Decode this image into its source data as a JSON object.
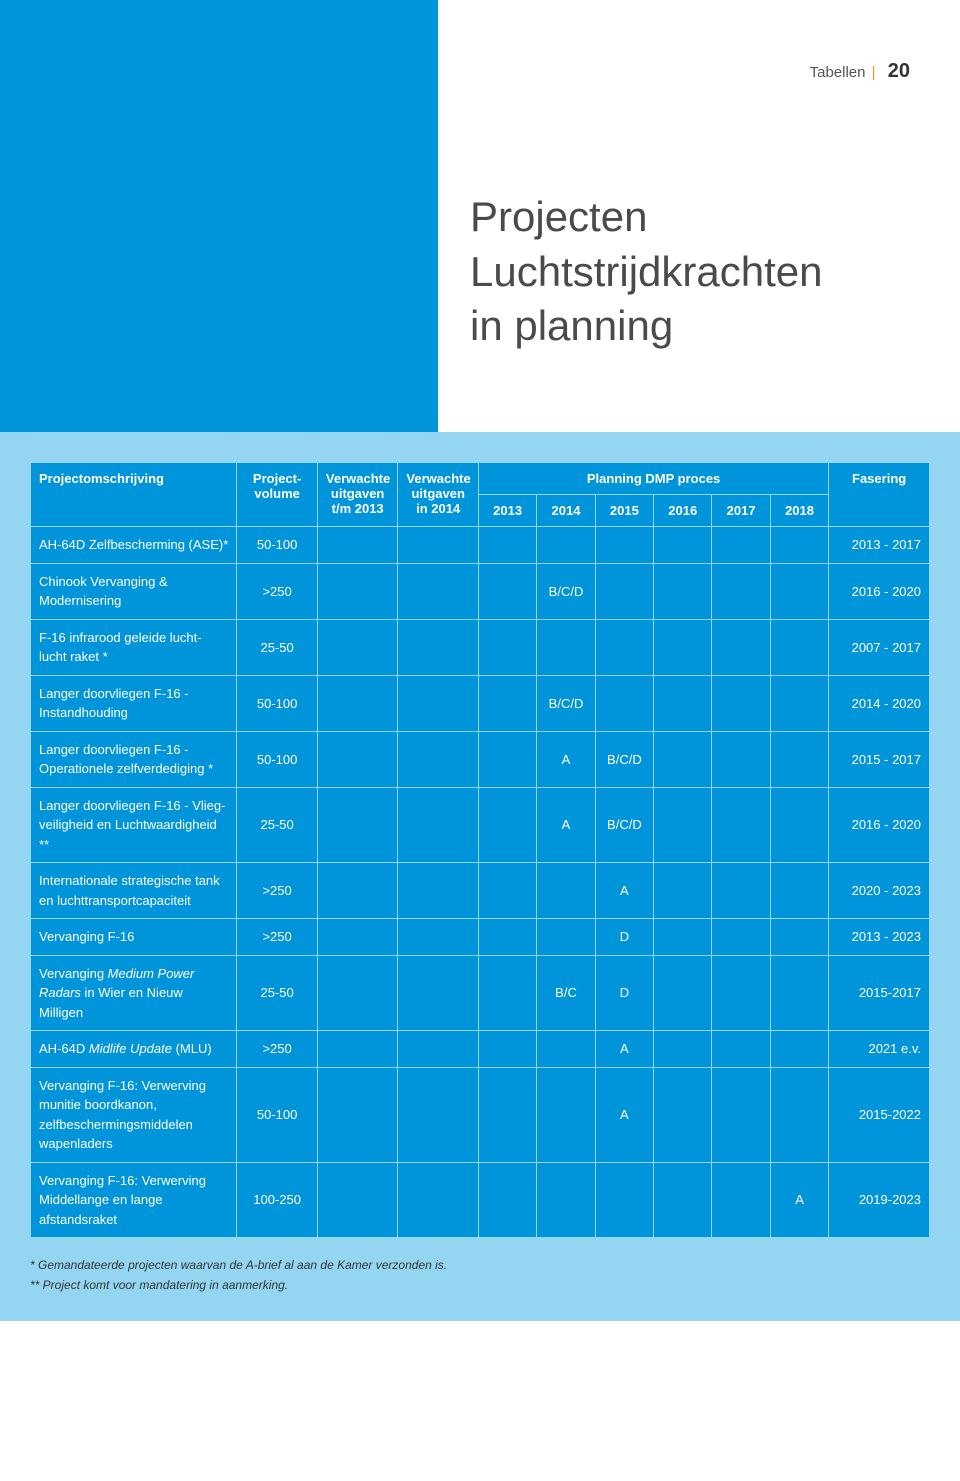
{
  "header": {
    "section_label": "Tabellen",
    "page_number": "20",
    "title_line1": "Projecten",
    "title_line2": "Luchtstrijdkrachten",
    "title_line3": "in planning"
  },
  "table": {
    "columns": {
      "desc": "Projectomschrijving",
      "volume_l1": "Project-",
      "volume_l2": "volume",
      "exp2013_l1": "Verwachte",
      "exp2013_l2": "uitgaven",
      "exp2013_l3": "t/m 2013",
      "exp2014_l1": "Verwachte",
      "exp2014_l2": "uitgaven",
      "exp2014_l3": "in 2014",
      "planning_group": "Planning DMP proces",
      "y2013": "2013",
      "y2014": "2014",
      "y2015": "2015",
      "y2016": "2016",
      "y2017": "2017",
      "y2018": "2018",
      "fasering": "Fasering"
    },
    "rows": [
      {
        "desc": "AH-64D Zelfbescherming (ASE)*",
        "vol": "50-100",
        "y2013": "",
        "y2014": "",
        "y2015": "",
        "y2016": "",
        "y2017": "",
        "y2018": "",
        "fase": "2013 - 2017"
      },
      {
        "desc": "Chinook Vervanging & Modernisering",
        "vol": ">250",
        "y2013": "",
        "y2014": "B/C/D",
        "y2015": "",
        "y2016": "",
        "y2017": "",
        "y2018": "",
        "fase": "2016 - 2020"
      },
      {
        "desc": "F-16 infrarood geleide lucht-lucht raket *",
        "vol": "25-50",
        "y2013": "",
        "y2014": "",
        "y2015": "",
        "y2016": "",
        "y2017": "",
        "y2018": "",
        "fase": "2007 - 2017"
      },
      {
        "desc": "Langer doorvliegen F-16 - Instandhouding",
        "vol": "50-100",
        "y2013": "",
        "y2014": "B/C/D",
        "y2015": "",
        "y2016": "",
        "y2017": "",
        "y2018": "",
        "fase": "2014 - 2020"
      },
      {
        "desc": "Langer doorvliegen F-16 - Operationele zelfverdediging *",
        "vol": "50-100",
        "y2013": "",
        "y2014": "A",
        "y2015": "B/C/D",
        "y2016": "",
        "y2017": "",
        "y2018": "",
        "fase": "2015 - 2017"
      },
      {
        "desc": "Langer doorvliegen F-16 - Vlieg-veiligheid en Luchtwaardigheid **",
        "vol": "25-50",
        "y2013": "",
        "y2014": "A",
        "y2015": "B/C/D",
        "y2016": "",
        "y2017": "",
        "y2018": "",
        "fase": "2016 - 2020"
      },
      {
        "desc": "Internationale strategische tank en luchttransportcapaciteit",
        "vol": ">250",
        "y2013": "",
        "y2014": "",
        "y2015": "A",
        "y2016": "",
        "y2017": "",
        "y2018": "",
        "fase": "2020 - 2023"
      },
      {
        "desc": "Vervanging F-16",
        "vol": ">250",
        "y2013": "",
        "y2014": "",
        "y2015": "D",
        "y2016": "",
        "y2017": "",
        "y2018": "",
        "fase": "2013 - 2023"
      },
      {
        "desc_html": "Vervanging <em class='it'>Medium Power Radars</em> in Wier en Nieuw Milligen",
        "vol": "25-50",
        "y2013": "",
        "y2014": "B/C",
        "y2015": "D",
        "y2016": "",
        "y2017": "",
        "y2018": "",
        "fase": "2015-2017"
      },
      {
        "desc_html": "AH-64D <em class='it'>Midlife Update</em> (MLU)",
        "vol": ">250",
        "y2013": "",
        "y2014": "",
        "y2015": "A",
        "y2016": "",
        "y2017": "",
        "y2018": "",
        "fase": "2021 e.v."
      },
      {
        "desc": "Vervanging F-16: Verwerving munitie boordkanon, zelfbeschermingsmiddelen wapenladers",
        "vol": "50-100",
        "y2013": "",
        "y2014": "",
        "y2015": "A",
        "y2016": "",
        "y2017": "",
        "y2018": "",
        "fase": "2015-2022"
      },
      {
        "desc": "Vervanging F-16: Verwerving Middellange en lange afstandsraket",
        "vol": "100-250",
        "y2013": "",
        "y2014": "",
        "y2015": "",
        "y2016": "",
        "y2017": "",
        "y2018": "A",
        "fase": "2019-2023"
      }
    ]
  },
  "footnotes": {
    "f1": "* Gemandateerde projecten waarvan de A-brief al aan de Kamer verzonden is.",
    "f2": "** Project komt voor mandatering in aanmerking."
  },
  "colors": {
    "brand_blue": "#0095da",
    "light_blue": "#94d6f2",
    "orange": "#f7941d",
    "title_text": "#4a4a4a"
  }
}
